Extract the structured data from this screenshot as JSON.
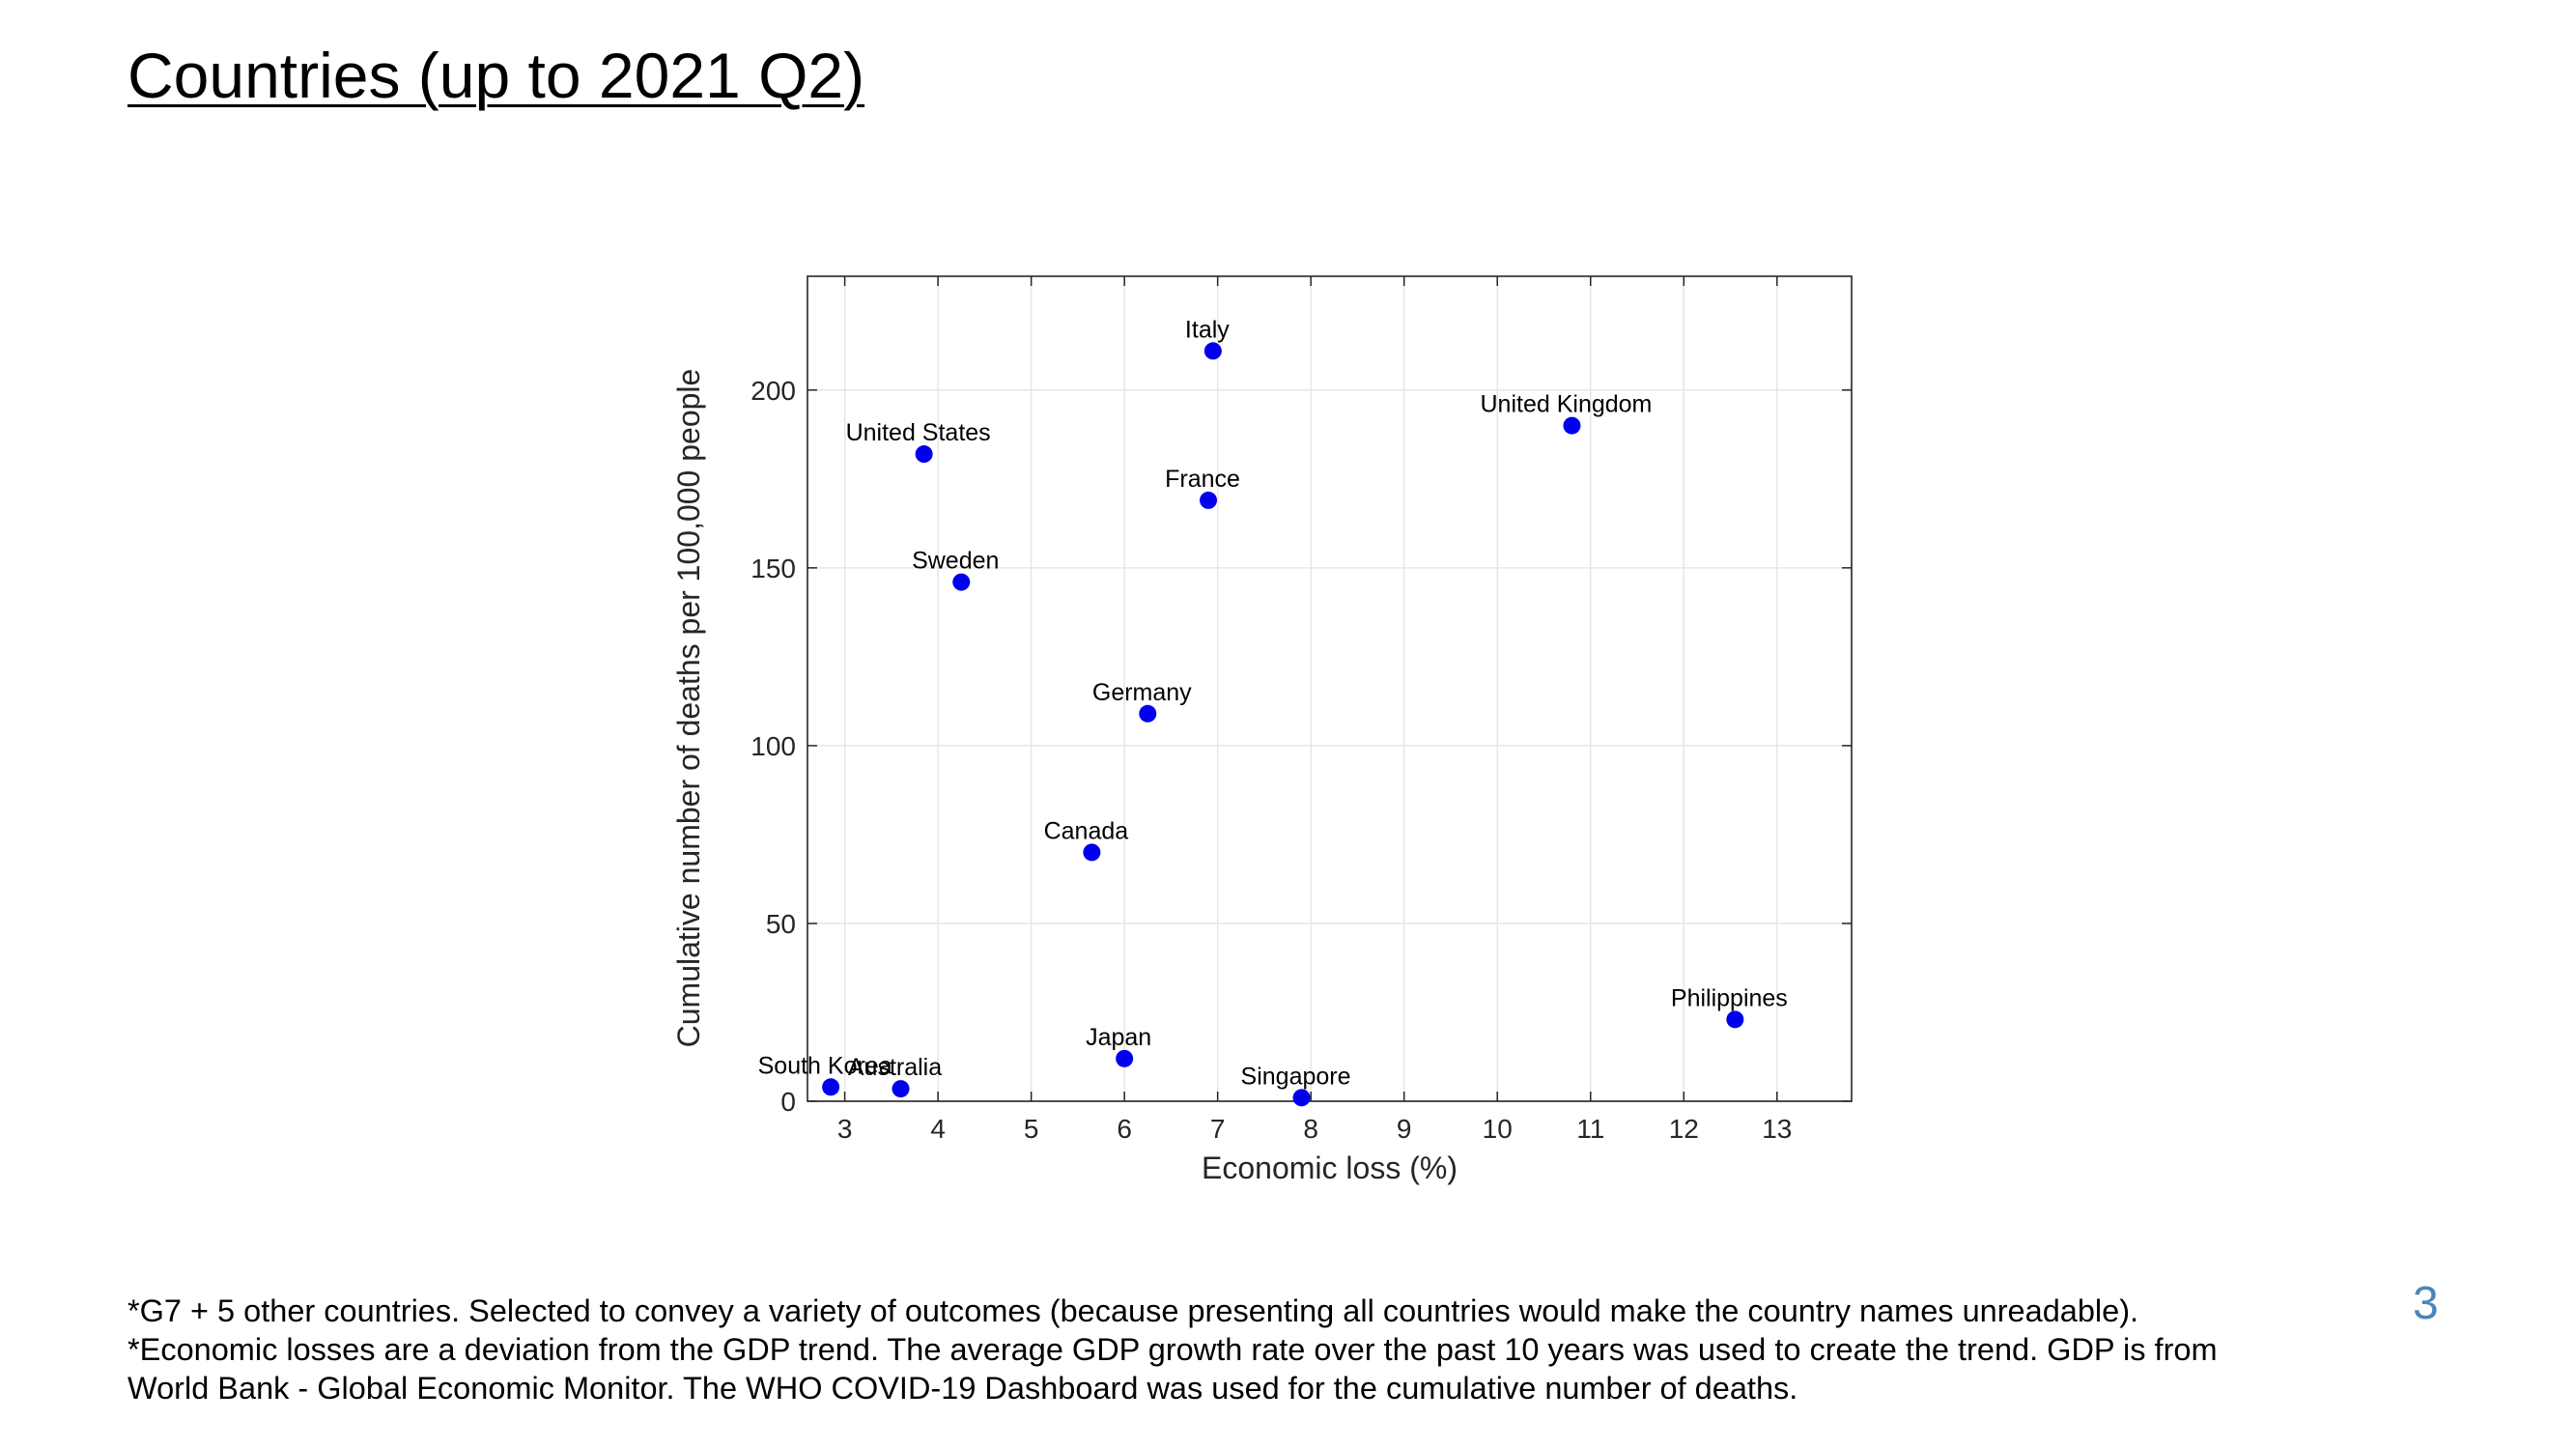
{
  "slide": {
    "title": "Countries (up to 2021 Q2)",
    "page_number": "3",
    "footnotes": [
      "*G7 + 5 other countries. Selected to convey a variety of outcomes (because presenting all countries would make the country names unreadable).",
      "*Economic losses are a deviation from the GDP trend. The average GDP growth rate over the past 10 years was used to create the trend. GDP is from",
      "World Bank - Global Economic Monitor. The WHO COVID-19 Dashboard was used for the cumulative number of deaths."
    ]
  },
  "chart_data": {
    "type": "scatter",
    "title": "",
    "xlabel": "Economic loss (%)",
    "ylabel": "Cumulative number of deaths per 100,000 people",
    "xlim": [
      2.6,
      13.8
    ],
    "ylim": [
      0,
      232
    ],
    "xticks": [
      3,
      4,
      5,
      6,
      7,
      8,
      9,
      10,
      11,
      12,
      13
    ],
    "yticks": [
      0,
      50,
      100,
      150,
      200
    ],
    "grid": true,
    "marker_color": "#0000ee",
    "points": [
      {
        "label": "Italy",
        "x": 6.95,
        "y": 211
      },
      {
        "label": "United Kingdom",
        "x": 10.8,
        "y": 190
      },
      {
        "label": "United States",
        "x": 3.85,
        "y": 182
      },
      {
        "label": "France",
        "x": 6.9,
        "y": 169
      },
      {
        "label": "Sweden",
        "x": 4.25,
        "y": 146
      },
      {
        "label": "Germany",
        "x": 6.25,
        "y": 109
      },
      {
        "label": "Canada",
        "x": 5.65,
        "y": 70
      },
      {
        "label": "Philippines",
        "x": 12.55,
        "y": 23
      },
      {
        "label": "Japan",
        "x": 6.0,
        "y": 12
      },
      {
        "label": "South Korea",
        "x": 2.85,
        "y": 4
      },
      {
        "label": "Australia",
        "x": 3.6,
        "y": 3.5
      },
      {
        "label": "Singapore",
        "x": 7.9,
        "y": 1
      }
    ]
  }
}
